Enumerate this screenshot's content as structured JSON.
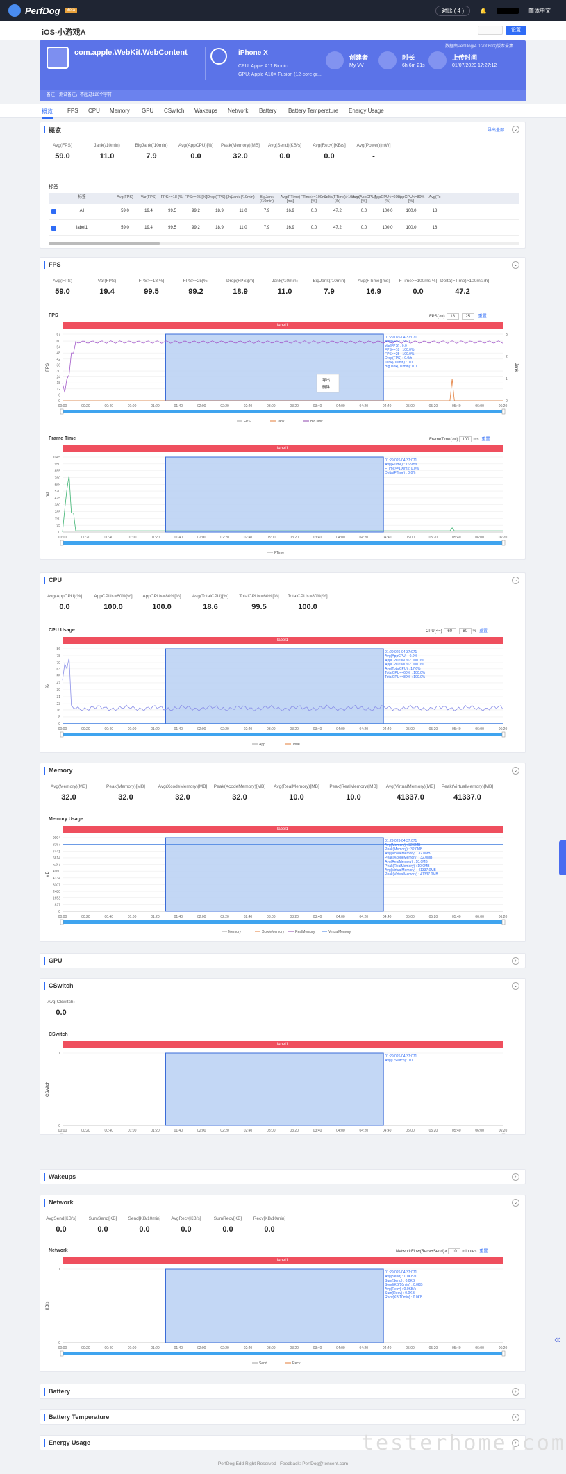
{
  "topbar": {
    "brand": "PerfDog",
    "badge": "Beta",
    "pill": "对比 ( 4 )",
    "lang": "简体中文"
  },
  "page": {
    "title": "iOS-小游戏A",
    "btn2": "设置"
  },
  "banner": {
    "app_name": "com.apple.WebKit.WebContent",
    "device": "iPhone X",
    "cpu": "CPU: Apple A11 Bionic",
    "gpu": "GPU: Apple A10X Fusion (12-core gr...",
    "creator_label": "创建者",
    "creator_value": "My VV",
    "duration_label": "时长",
    "duration_value": "6h 6m 21s",
    "upload_label": "上传时间",
    "upload_value": "01/07/2020 17:27:12",
    "note": "数据由PerfDog(4.0.200603)版本采集",
    "footer": "备注：测试备注，不超过120个字符"
  },
  "tabs": [
    "概览",
    "FPS",
    "CPU",
    "Memory",
    "GPU",
    "CSwitch",
    "Wakeups",
    "Network",
    "Battery",
    "Battery Temperature",
    "Energy Usage"
  ],
  "overview": {
    "title": "概览",
    "export": "导出全部",
    "stats": [
      {
        "k": "Avg(FPS)",
        "v": "59.0"
      },
      {
        "k": "Jank(/10min)",
        "v": "11.0"
      },
      {
        "k": "BigJank(/10min)",
        "v": "7.9"
      },
      {
        "k": "Avg(AppCPU)[%]",
        "v": "0.0"
      },
      {
        "k": "Peak(Memory)[MB]",
        "v": "32.0"
      },
      {
        "k": "Avg(Send)[KB/s]",
        "v": "0.0"
      },
      {
        "k": "Avg(Recv)[KB/s]",
        "v": "0.0"
      },
      {
        "k": "Avg(Power)[mW]",
        "v": "-"
      }
    ],
    "label_title": "标签",
    "table_headers": [
      "标签",
      "Avg(FPS)",
      "Var(FPS)",
      "FPS>=18 [%]",
      "FPS>=25 [%]",
      "Drop(FPS) [/h]",
      "Jank (/10min)",
      "BigJank (/10min)",
      "Avg(FTime) [ms]",
      "FTime>=100ms [%]",
      "Delta(FTime)>100ms [/h]",
      "Avg(AppCPU) [%]",
      "AppCPU<=60% [%]",
      "AppCPU<=80% [%]",
      "Avg(To"
    ],
    "rows": [
      [
        "All",
        "59.0",
        "19.4",
        "99.5",
        "99.2",
        "18.9",
        "11.0",
        "7.9",
        "16.9",
        "0.0",
        "47.2",
        "0.0",
        "100.0",
        "100.0",
        "18"
      ],
      [
        "label1",
        "59.0",
        "19.4",
        "99.5",
        "99.2",
        "18.9",
        "11.0",
        "7.9",
        "16.9",
        "0.0",
        "47.2",
        "0.0",
        "100.0",
        "100.0",
        "18"
      ]
    ]
  },
  "fps": {
    "title": "FPS",
    "stats": [
      {
        "k": "Avg(FPS)",
        "v": "59.0"
      },
      {
        "k": "Var(FPS)",
        "v": "19.4"
      },
      {
        "k": "FPS>=18[%]",
        "v": "99.5"
      },
      {
        "k": "FPS>=25[%]",
        "v": "99.2"
      },
      {
        "k": "Drop(FPS)[/h]",
        "v": "18.9"
      },
      {
        "k": "Jank(/10min)",
        "v": "11.0"
      },
      {
        "k": "BigJank(/10min)",
        "v": "7.9"
      },
      {
        "k": "Avg(FTime)[ms]",
        "v": "16.9"
      },
      {
        "k": "FTime>=100ms[%]",
        "v": "0.0"
      },
      {
        "k": "Delta(FTime)>100ms[/h]",
        "v": "47.2"
      }
    ],
    "chart_label": "FPS",
    "ctrl_label": "FPS(>=)",
    "ctrl_v1": "18",
    "ctrl_v2": "25",
    "reset": "重置",
    "label": "label1",
    "tip": [
      "01:29:026-04:37:071",
      "Avg(FPS)    : 59.0",
      "Var(FPS)    : 0.0",
      "FPS>=18     : 100.0%",
      "FPS>=25     : 100.0%",
      "Drop(FPS)   : 0.0/h",
      "Jank(/10min)   : 0.0",
      "BigJank(/10min): 0.0"
    ],
    "menu": [
      "导出",
      "删除"
    ],
    "legend": [
      "FPS",
      "Jank",
      "BigJank"
    ]
  },
  "ftime": {
    "chart_label": "Frame Time",
    "ctrl_label": "FrameTime(>=)",
    "ctrl_v": "100",
    "unit": "ms",
    "reset": "重置",
    "label": "label1",
    "tip": [
      "01:29:026-04:37:071",
      "Avg(FTime)    : 16.9ms",
      "FTime>=100ms: 0.0%",
      "Delta(FTime)    : 0.0/h"
    ],
    "legend": [
      "FTime"
    ]
  },
  "cpu": {
    "title": "CPU",
    "stats": [
      {
        "k": "Avg(AppCPU)[%]",
        "v": "0.0"
      },
      {
        "k": "AppCPU<=60%[%]",
        "v": "100.0"
      },
      {
        "k": "AppCPU<=80%[%]",
        "v": "100.0"
      },
      {
        "k": "Avg(TotalCPU)[%]",
        "v": "18.6"
      },
      {
        "k": "TotalCPU<=60%[%]",
        "v": "99.5"
      },
      {
        "k": "TotalCPU<=80%[%]",
        "v": "100.0"
      }
    ],
    "chart_label": "CPU Usage",
    "ctrl_label": "CPU(<=)",
    "ctrl_v1": "60",
    "ctrl_v2": "80",
    "unit": "%",
    "reset": "重置",
    "label": "label1",
    "tip": [
      "01:29:026-04:37:071",
      "Avg(AppCPU)     : 0.0%",
      "AppCPU<=60%   : 100.0%",
      "AppCPU<=80%   : 100.0%",
      "Avg(TotalCPU)  : 17.6%",
      "TotalCPU<=60% : 100.0%",
      "TotalCPU<=80% : 100.0%"
    ],
    "legend": [
      "App",
      "Total"
    ]
  },
  "memory": {
    "title": "Memory",
    "stats": [
      {
        "k": "Avg(Memory)[MB]",
        "v": "32.0"
      },
      {
        "k": "Peak(Memory)[MB]",
        "v": "32.0"
      },
      {
        "k": "Avg(XcodeMemory)[MB]",
        "v": "32.0"
      },
      {
        "k": "Peak(XcodeMemory)[MB]",
        "v": "32.0"
      },
      {
        "k": "Avg(RealMemory)[MB]",
        "v": "10.0"
      },
      {
        "k": "Peak(RealMemory)[MB]",
        "v": "10.0"
      },
      {
        "k": "Avg(VirtualMemory)[MB]",
        "v": "41337.0"
      },
      {
        "k": "Peak(VirtualMemory)[MB]",
        "v": "41337.0"
      }
    ],
    "chart_label": "Memory Usage",
    "label": "label1",
    "tip": [
      "01:29:026-04:37:071",
      "Avg(Memory)          : 32.0MB",
      "Peak(Memory)         : 32.0MB",
      "Avg(XcodeMemory)   : 32.0MB",
      "Peak(XcodeMemory)  : 32.0MB",
      "Avg(RealMemory)      : 10.0MB",
      "Peak(RealMemory)     : 10.0MB",
      "Avg(VirtualMemory)   : 41337.0MB",
      "Peak(VirtualMemory)  : 41337.0MB"
    ],
    "legend": [
      "Memory",
      "XcodeMemory",
      "RealMemory",
      "VirtualMemory"
    ]
  },
  "gpu": {
    "title": "GPU"
  },
  "cswitch": {
    "title": "CSwitch",
    "stats": [
      {
        "k": "Avg(CSwitch)",
        "v": "0.0"
      }
    ],
    "chart_label": "CSwitch",
    "label": "label1",
    "tip": [
      "01:29:026-04:37:071",
      "Avg(CSwitch): 0.0"
    ],
    "legend": [
      "CSwitch"
    ]
  },
  "wakeups": {
    "title": "Wakeups"
  },
  "network": {
    "title": "Network",
    "stats": [
      {
        "k": "AvgSend[KB/s]",
        "v": "0.0"
      },
      {
        "k": "SumSend[KB]",
        "v": "0.0"
      },
      {
        "k": "Send[KB/10min]",
        "v": "0.0"
      },
      {
        "k": "AvgRecv[KB/s]",
        "v": "0.0"
      },
      {
        "k": "SumRecv[KB]",
        "v": "0.0"
      },
      {
        "k": "Recv[KB/10min]",
        "v": "0.0"
      }
    ],
    "chart_label": "Network",
    "ctrl_label": "NetworkFlow(Recv+Send)>",
    "ctrl_v": "10",
    "unit": "minutes",
    "reset": "重置",
    "label": "label1",
    "tip": [
      "01:29:026-04:37:071",
      "Avg(Send)          : 0.0KB/s",
      "Sum(Send)          : 0.0KB",
      "Send(KB/10min)   : 0.0KB",
      "Avg(Recv)          : 0.0KB/s",
      "Sum(Recv)          : 0.0KB",
      "Recv(KB/10min)   : 0.0KB"
    ],
    "legend": [
      "Send",
      "Recv"
    ]
  },
  "battery": {
    "title": "Battery"
  },
  "battery_temp": {
    "title": "Battery Temperature"
  },
  "energy": {
    "title": "Energy Usage"
  },
  "footer": "PerfDog Edd Right Reserved | Feedback: PerfDog@tencent.com",
  "watermark": "testerhome.com",
  "xticks": [
    "00:00",
    "00:20",
    "00:40",
    "01:00",
    "01:20",
    "01:40",
    "02:00",
    "02:20",
    "02:40",
    "03:00",
    "03:20",
    "03:40",
    "04:00",
    "04:20",
    "04:40",
    "05:00",
    "05:20",
    "05:40",
    "06:00",
    "06:20"
  ],
  "chart_data": [
    {
      "type": "line",
      "title": "FPS",
      "ylabel": "FPS",
      "y2label": "Jank",
      "ylim": [
        0,
        67
      ],
      "y2lim": [
        0,
        3
      ],
      "yticks": [
        0,
        6,
        12,
        18,
        24,
        30,
        36,
        42,
        48,
        54,
        60,
        67
      ],
      "y2ticks": [
        0,
        1,
        2,
        3
      ],
      "series": [
        {
          "name": "FPS",
          "summary": "~59-60 steady after initial ramp with drops near 00:05-00:15"
        },
        {
          "name": "Jank",
          "summary": "spike near 05:40"
        },
        {
          "name": "BigJank"
        }
      ],
      "selection": [
        "01:29",
        "04:37"
      ]
    },
    {
      "type": "line",
      "title": "Frame Time",
      "ylabel": "ms",
      "ylim": [
        0,
        1045
      ],
      "yticks": [
        0,
        95,
        190,
        285,
        380,
        475,
        570,
        665,
        760,
        855,
        950,
        1045
      ],
      "series": [
        {
          "name": "FTime",
          "summary": "spikes up to ~950 in first 20s, small blips near 05:40"
        }
      ],
      "selection": [
        "01:29",
        "04:37"
      ]
    },
    {
      "type": "line",
      "title": "CPU Usage",
      "ylabel": "%",
      "ylim": [
        0,
        86
      ],
      "yticks": [
        0,
        8,
        16,
        23,
        31,
        39,
        47,
        55,
        63,
        70,
        78,
        86
      ],
      "series": [
        {
          "name": "App",
          "summary": "~0"
        },
        {
          "name": "Total",
          "summary": "~17-20 with spike to ~78 near 00:08"
        }
      ],
      "selection": [
        "01:29",
        "04:37"
      ]
    },
    {
      "type": "line",
      "title": "Memory Usage",
      "ylabel": "MB",
      "ylim": [
        0,
        9094
      ],
      "yticks": [
        0,
        827,
        1653,
        2480,
        3307,
        4134,
        4960,
        5787,
        6614,
        7441,
        8267,
        9094
      ],
      "series": [
        {
          "name": "Memory"
        },
        {
          "name": "XcodeMemory"
        },
        {
          "name": "RealMemory"
        },
        {
          "name": "VirtualMemory",
          "summary": "flat ~8267"
        }
      ],
      "selection": [
        "01:29",
        "04:37"
      ]
    },
    {
      "type": "line",
      "title": "CSwitch",
      "ylabel": "CSwitch",
      "ylim": [
        0,
        1
      ],
      "yticks": [
        0,
        1
      ],
      "series": [
        {
          "name": "CSwitch"
        }
      ],
      "selection": [
        "01:29",
        "04:37"
      ]
    },
    {
      "type": "line",
      "title": "Network",
      "ylabel": "KB/s",
      "ylim": [
        0,
        1
      ],
      "yticks": [
        0,
        1
      ],
      "series": [
        {
          "name": "Send"
        },
        {
          "name": "Recv"
        }
      ],
      "selection": [
        "01:29",
        "04:37"
      ]
    }
  ]
}
